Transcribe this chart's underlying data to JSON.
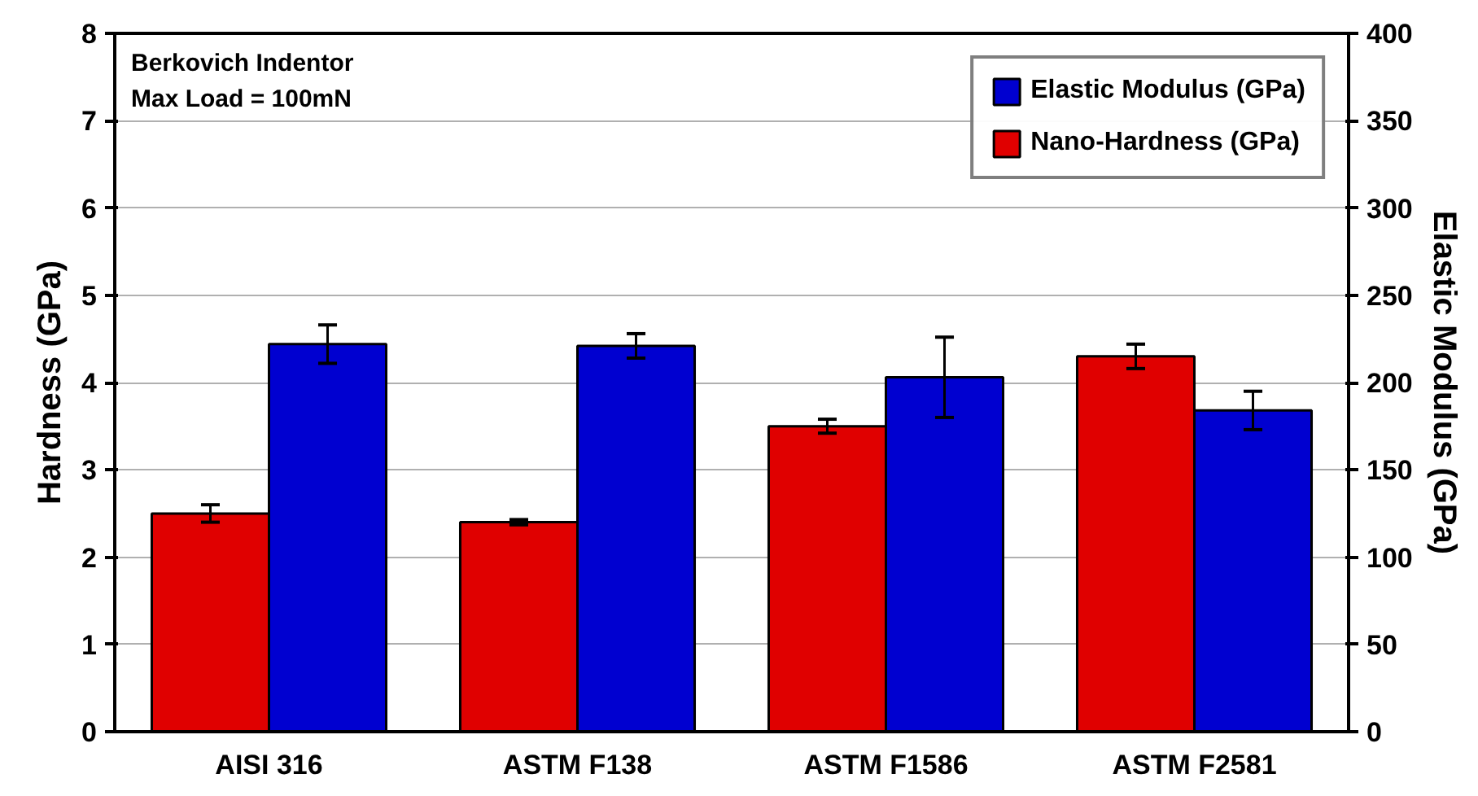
{
  "chart_data": {
    "type": "bar",
    "categories": [
      "AISI 316",
      "ASTM F138",
      "ASTM F1586",
      "ASTM F2581"
    ],
    "series": [
      {
        "name": "Nano-Hardness (GPa)",
        "color": "#e00000",
        "values": [
          2.5,
          2.4,
          3.5,
          4.3
        ],
        "errors": [
          0.1,
          0.03,
          0.08,
          0.14
        ]
      },
      {
        "name": "Elastic Modulus (GPa)",
        "color": "#0000d0",
        "axis": "y2",
        "values": [
          222,
          221,
          203,
          184
        ],
        "errors": [
          11,
          7,
          23,
          11
        ]
      }
    ],
    "ylabel": "Hardness (GPa)",
    "y2label": "Elastic Modulus (GPa)",
    "ylim": [
      0,
      8
    ],
    "yticks": [
      0,
      1,
      2,
      3,
      4,
      5,
      6,
      7,
      8
    ],
    "y2lim": [
      0,
      400
    ],
    "y2ticks": [
      0,
      50,
      100,
      150,
      200,
      250,
      300,
      350,
      400
    ],
    "grid": "y",
    "legend": "top right",
    "annotations": [
      "Berkovich Indentor",
      "Max Load = 100mN"
    ]
  }
}
